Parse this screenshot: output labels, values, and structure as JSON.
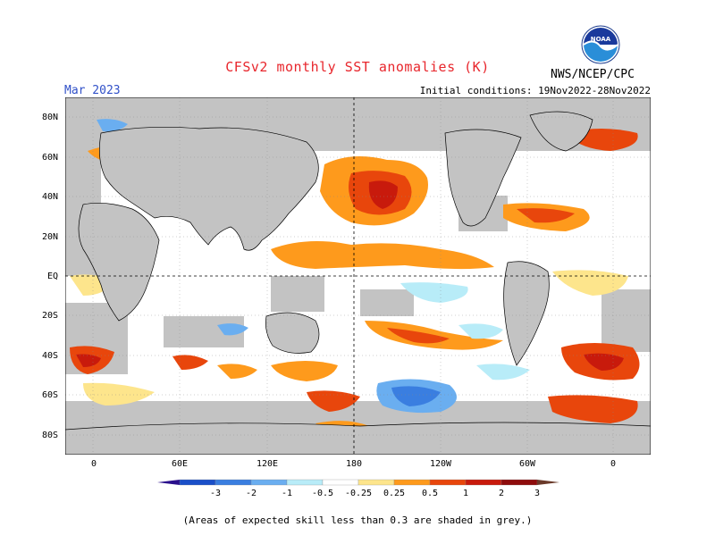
{
  "header": {
    "title": "CFSv2 monthly SST anomalies (K)",
    "agency": "NWS/NCEP/CPC",
    "month": "Mar 2023",
    "initial_conditions": "Initial conditions: 19Nov2022-28Nov2022",
    "logo_text": "NOAA"
  },
  "axes": {
    "lat_labels": [
      "80N",
      "60N",
      "40N",
      "20N",
      "EQ",
      "20S",
      "40S",
      "60S",
      "80S"
    ],
    "lon_labels": [
      "0",
      "60E",
      "120E",
      "180",
      "120W",
      "60W",
      "0"
    ]
  },
  "colorbar": {
    "labels": [
      "-3",
      "-2",
      "-1",
      "-0.5",
      "-0.25",
      "0.25",
      "0.5",
      "1",
      "2",
      "3"
    ],
    "colors": [
      "#2a0f8c",
      "#1a4fc8",
      "#3a7ee0",
      "#6aaef0",
      "#b8ecf8",
      "#ffffff",
      "#fde58c",
      "#fe9a1c",
      "#e8460c",
      "#c81a0c",
      "#8e0c0c",
      "#6a3a2a"
    ]
  },
  "colors": {
    "land": "#c3c3c3",
    "ocean_neutral": "#ffffff",
    "title": "#e8262c",
    "month": "#3050c8"
  },
  "footnote": "(Areas of expected skill less than 0.3 are shaded in grey.)"
}
